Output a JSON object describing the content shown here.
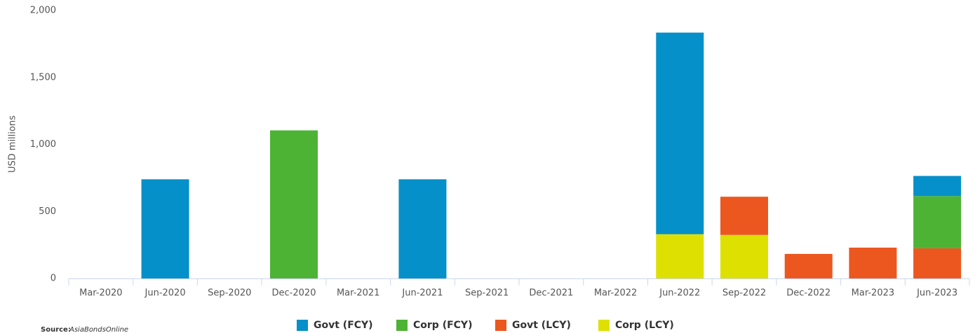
{
  "chart_data": {
    "type": "stacked_bar",
    "y_axis_label": "USD millions",
    "source_label": "Source:",
    "source": "AsiaBondsOnline",
    "categories": [
      "Mar-2020",
      "Jun-2020",
      "Sep-2020",
      "Dec-2020",
      "Mar-2021",
      "Jun-2021",
      "Sep-2021",
      "Dec-2021",
      "Mar-2022",
      "Jun-2022",
      "Sep-2022",
      "Dec-2022",
      "Mar-2023",
      "Jun-2023"
    ],
    "series": [
      {
        "name": "Govt (FCY)",
        "color": "#0590c9",
        "values": [
          null,
          740,
          null,
          null,
          null,
          740,
          null,
          null,
          null,
          1505,
          null,
          null,
          null,
          150
        ]
      },
      {
        "name": "Corp (FCY)",
        "color": "#4db335",
        "values": [
          null,
          null,
          null,
          1105,
          null,
          null,
          null,
          null,
          null,
          null,
          null,
          null,
          null,
          390
        ]
      },
      {
        "name": "Govt (LCY)",
        "color": "#ec571f",
        "values": [
          null,
          null,
          null,
          null,
          null,
          null,
          null,
          null,
          null,
          null,
          285,
          183,
          230,
          225
        ]
      },
      {
        "name": "Corp (LCY)",
        "color": "#dde000",
        "values": [
          null,
          null,
          null,
          null,
          null,
          null,
          null,
          null,
          null,
          330,
          325,
          null,
          null,
          null
        ]
      }
    ],
    "ylim": [
      0,
      2000
    ],
    "yticks": [
      0,
      {
        "value": 500,
        "label": "500"
      },
      {
        "value": 1000,
        "label": "1,000"
      },
      {
        "value": 1500,
        "label": "1,500"
      },
      {
        "value": 2000,
        "label": "2,000"
      }
    ],
    "grid": false
  }
}
